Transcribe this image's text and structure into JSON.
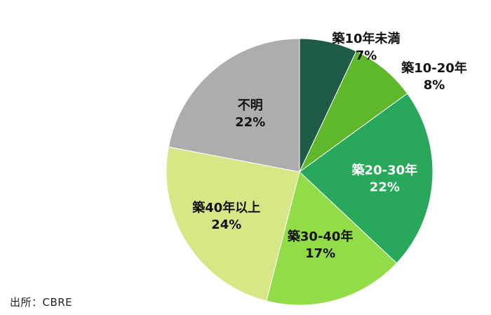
{
  "chart_data": {
    "type": "pie",
    "start_angle_deg": 0,
    "direction": "clockwise",
    "slices": [
      {
        "label": "築10年未満",
        "value": 7,
        "value_label": "7%",
        "color": "#1f5c46",
        "label_color": "#111111",
        "label_position": "outside"
      },
      {
        "label": "築10-20年",
        "value": 8,
        "value_label": "8%",
        "color": "#5fb829",
        "label_color": "#111111",
        "label_position": "outside"
      },
      {
        "label": "築20-30年",
        "value": 22,
        "value_label": "22%",
        "color": "#27a85a",
        "label_color": "#ffffff",
        "label_position": "inside"
      },
      {
        "label": "築30-40年",
        "value": 17,
        "value_label": "17%",
        "color": "#92dc48",
        "label_color": "#111111",
        "label_position": "inside"
      },
      {
        "label": "築40年以上",
        "value": 24,
        "value_label": "24%",
        "color": "#d7e786",
        "label_color": "#111111",
        "label_position": "inside"
      },
      {
        "label": "不明",
        "value": 22,
        "value_label": "22%",
        "color": "#adadad",
        "label_color": "#111111",
        "label_position": "inside"
      }
    ]
  },
  "source_text": "出所：CBRE"
}
